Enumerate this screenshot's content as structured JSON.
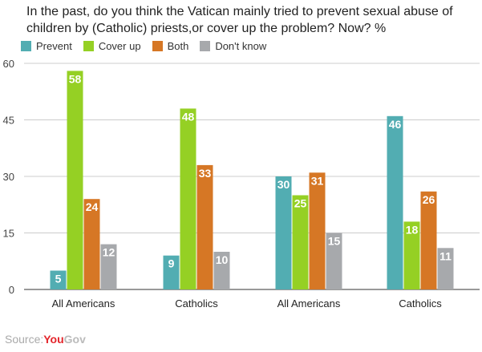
{
  "chart_data": {
    "type": "bar",
    "title": "In the past, do you think the Vatican mainly tried to prevent sexual abuse of children by (Catholic) priests,or cover up the problem? Now? %",
    "categories": [
      "All Americans",
      "Catholics",
      "All Americans",
      "Catholics"
    ],
    "series": [
      {
        "name": "Prevent",
        "color": "#52adb2",
        "values": [
          5,
          9,
          30,
          46
        ]
      },
      {
        "name": "Cover up",
        "color": "#95d024",
        "values": [
          58,
          48,
          25,
          18
        ]
      },
      {
        "name": "Both",
        "color": "#d67725",
        "values": [
          24,
          33,
          31,
          26
        ]
      },
      {
        "name": "Don't know",
        "color": "#a7a9ac",
        "values": [
          12,
          10,
          15,
          11
        ]
      }
    ],
    "yticks": [
      0,
      15,
      30,
      45,
      60
    ],
    "ylim": [
      0,
      60
    ],
    "grid": true,
    "legend": "top-left",
    "data_labels": true
  },
  "source": {
    "label": "Source:",
    "brand_you": "You",
    "brand_gov": "Gov"
  }
}
